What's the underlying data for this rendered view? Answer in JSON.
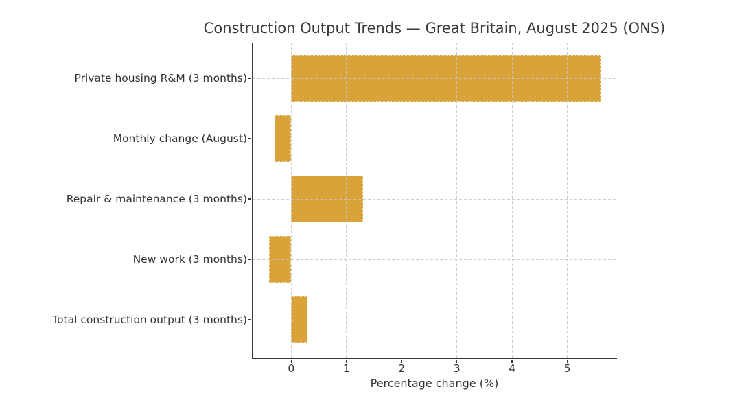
{
  "chart_data": {
    "type": "bar",
    "orientation": "horizontal",
    "title": "Construction Output Trends — Great Britain, August 2025 (ONS)",
    "xlabel": "Percentage change (%)",
    "categories": [
      "Private housing R&M (3 months)",
      "Monthly change (August)",
      "Repair & maintenance (3 months)",
      "New work (3 months)",
      "Total construction output (3 months)"
    ],
    "values": [
      5.6,
      -0.3,
      1.3,
      -0.4,
      0.3
    ],
    "x_ticks": [
      0,
      1,
      2,
      3,
      4,
      5
    ],
    "xlim": [
      -0.7,
      5.9
    ],
    "grid": true,
    "grid_style": "dashed",
    "legend": "none",
    "bar_color": "#d9a33a",
    "bar_edge_color": "#eddfad",
    "grid_color": "rgba(198,198,198,0.85)",
    "axis_color": "#3a3a3a",
    "text_color": "#333333",
    "background": "#ffffff"
  }
}
